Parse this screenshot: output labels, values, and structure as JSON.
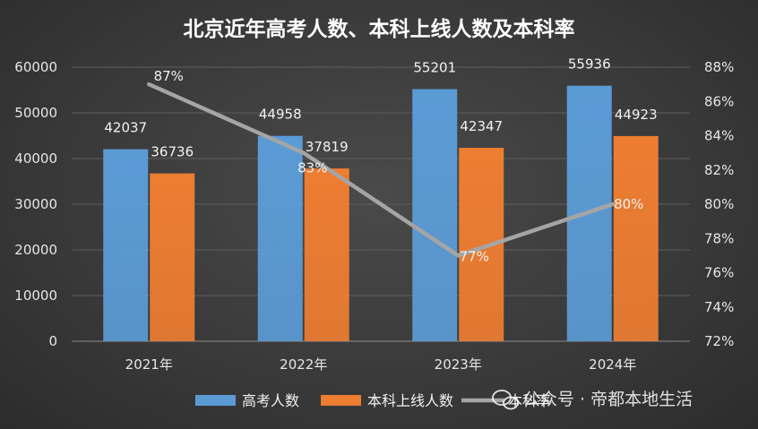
{
  "chart_data": {
    "type": "bar",
    "title": "北京近年高考人数、本科上线人数及本科率",
    "categories": [
      "2021年",
      "2022年",
      "2023年",
      "2024年"
    ],
    "series": [
      {
        "name": "高考人数",
        "kind": "bar",
        "axis": "left",
        "color": "#5b9bd5",
        "values": [
          42037,
          44958,
          55201,
          55936
        ],
        "labels": [
          "42037",
          "44958",
          "55201",
          "55936"
        ]
      },
      {
        "name": "本科上线人数",
        "kind": "bar",
        "axis": "left",
        "color": "#ed7d31",
        "values": [
          36736,
          37819,
          42347,
          44923
        ],
        "labels": [
          "36736",
          "37819",
          "42347",
          "44923"
        ]
      },
      {
        "name": "本科率",
        "kind": "line",
        "axis": "right",
        "color": "#a5a5a5",
        "values": [
          87,
          83,
          77,
          80
        ],
        "labels": [
          "87%",
          "83%",
          "77%",
          "80%"
        ]
      }
    ],
    "ylim": [
      0,
      60000
    ],
    "yticks": [
      "0",
      "10000",
      "20000",
      "30000",
      "40000",
      "50000",
      "60000"
    ],
    "y2lim": [
      72,
      88
    ],
    "y2ticks": [
      "72%",
      "74%",
      "76%",
      "78%",
      "80%",
      "82%",
      "84%",
      "86%",
      "88%"
    ],
    "legend_position": "bottom"
  },
  "watermark": {
    "text": "公众号 · 帝都本地生活",
    "icon": "wechat-icon"
  }
}
